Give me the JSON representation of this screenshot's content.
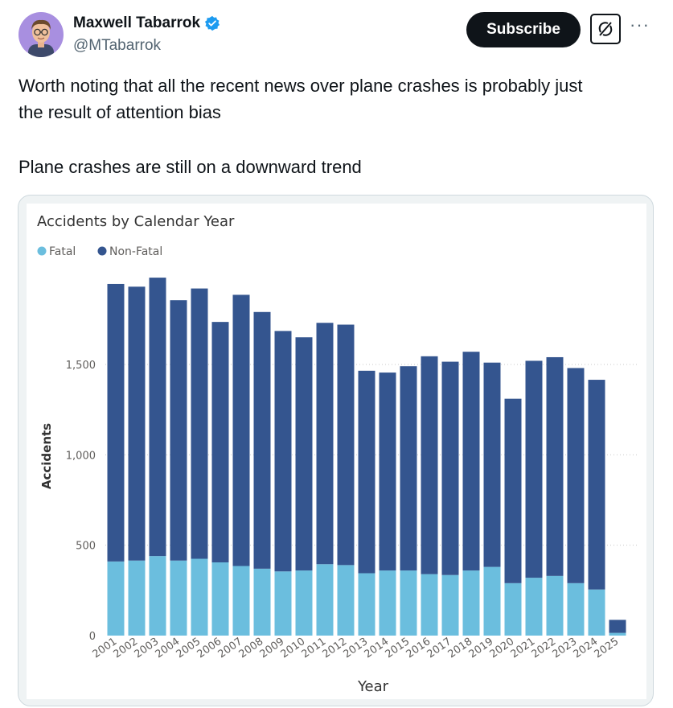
{
  "author": {
    "name": "Maxwell Tabarrok",
    "handle": "@MTabarrok",
    "verified": true
  },
  "actions": {
    "subscribe": "Subscribe",
    "grok_icon": "grok-icon",
    "more": "···"
  },
  "post": {
    "line1": "Worth noting that all the recent news over plane crashes is probably just",
    "line2": "the result of attention bias",
    "line3": "Plane crashes are still on a downward trend"
  },
  "colors": {
    "fatal": "#6bbede",
    "nonfatal": "#34558f",
    "accent": "#1d9bf0"
  },
  "chart_data": {
    "type": "bar",
    "stacked": true,
    "title": "Accidents by Calendar Year",
    "xlabel": "Year",
    "ylabel": "Accidents",
    "ylim": [
      0,
      2000
    ],
    "yticks": [
      0,
      500,
      1000,
      1500
    ],
    "ytick_labels": [
      "0",
      "500",
      "1,000",
      "1,500"
    ],
    "legend_position": "top-left",
    "grid": true,
    "categories": [
      "2001",
      "2002",
      "2003",
      "2004",
      "2005",
      "2006",
      "2007",
      "2008",
      "2009",
      "2010",
      "2011",
      "2012",
      "2013",
      "2014",
      "2015",
      "2016",
      "2017",
      "2018",
      "2019",
      "2020",
      "2021",
      "2022",
      "2023",
      "2024",
      "2025"
    ],
    "series": [
      {
        "name": "Fatal",
        "values": [
          410,
          415,
          440,
          415,
          425,
          405,
          385,
          370,
          355,
          360,
          395,
          390,
          345,
          360,
          360,
          340,
          335,
          360,
          380,
          290,
          320,
          330,
          290,
          255,
          15
        ]
      },
      {
        "name": "Non-Fatal",
        "values": [
          1535,
          1515,
          1540,
          1440,
          1495,
          1330,
          1500,
          1420,
          1330,
          1290,
          1335,
          1330,
          1120,
          1095,
          1130,
          1205,
          1180,
          1210,
          1130,
          1020,
          1200,
          1210,
          1190,
          1160,
          72
        ]
      }
    ]
  }
}
